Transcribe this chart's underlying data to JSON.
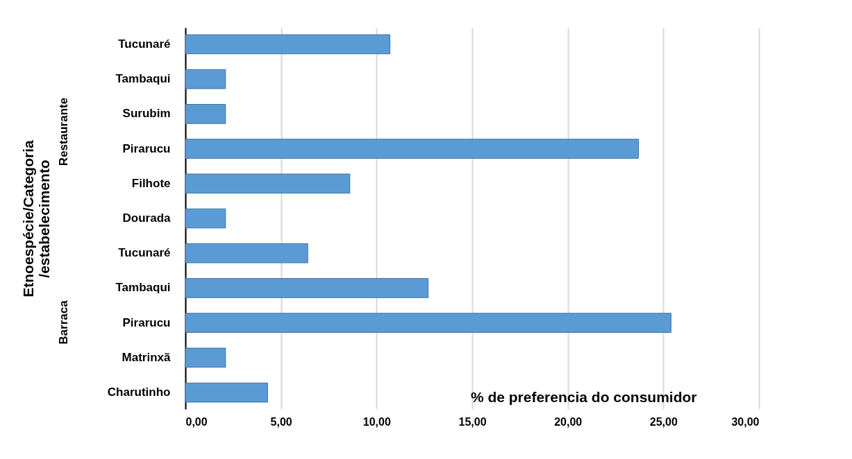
{
  "chart_data": {
    "type": "bar",
    "orientation": "horizontal",
    "ylabel": "Etnoespécie/Categoria\n/estabelecimento",
    "xlabel": "% de preferencia do consumidor",
    "categories": [
      "Tucunaré",
      "Tambaqui",
      "Surubim",
      "Pirarucu",
      "Filhote ",
      "Dourada",
      "Tucunaré",
      "Tambaqui",
      "Pirarucu",
      "Matrinxã",
      "Charutinho"
    ],
    "values": [
      10.7,
      2.1,
      2.1,
      23.7,
      8.6,
      2.1,
      6.4,
      12.7,
      25.4,
      2.1,
      4.3
    ],
    "color": "#5b9bd5",
    "xlim": [
      0,
      30
    ],
    "xticks": [
      {
        "value": 0,
        "label": "0,00"
      },
      {
        "value": 5,
        "label": "5,00"
      },
      {
        "value": 10,
        "label": "10,00"
      },
      {
        "value": 15,
        "label": "15,00"
      },
      {
        "value": 20,
        "label": "20,00"
      },
      {
        "value": 25,
        "label": "25,00"
      },
      {
        "value": 30,
        "label": "30,00"
      }
    ],
    "grid": "x",
    "annotations": [
      "Restaurante",
      "Barraca"
    ]
  }
}
